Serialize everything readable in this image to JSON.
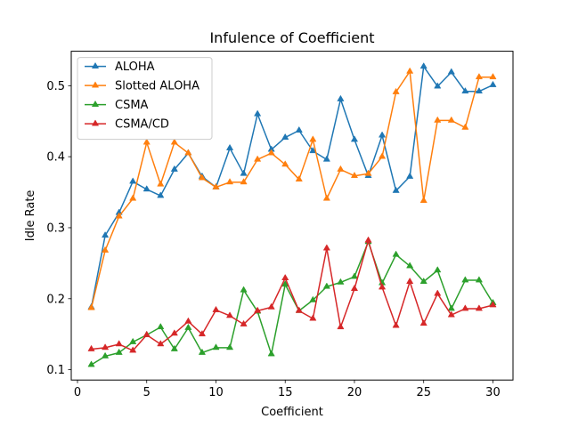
{
  "chart_data": {
    "type": "line",
    "title": "Infulence of Coefficient",
    "xlabel": "Coefficient",
    "ylabel": "Idle Rate",
    "xlim": [
      -0.45,
      31.45
    ],
    "ylim": [
      0.0855,
      0.5485
    ],
    "xticks": [
      0,
      5,
      10,
      15,
      20,
      25,
      30
    ],
    "yticks": [
      0.1,
      0.2,
      0.3,
      0.4,
      0.5
    ],
    "xtick_labels": [
      "0",
      "5",
      "10",
      "15",
      "20",
      "25",
      "30"
    ],
    "ytick_labels": [
      "0.1",
      "0.2",
      "0.3",
      "0.4",
      "0.5"
    ],
    "grid": false,
    "legend_position": "top-left",
    "marker": "triangle-up",
    "x": [
      1,
      2,
      3,
      4,
      5,
      6,
      7,
      8,
      9,
      10,
      11,
      12,
      13,
      14,
      15,
      16,
      17,
      18,
      19,
      20,
      21,
      22,
      23,
      24,
      25,
      26,
      27,
      28,
      29,
      30
    ],
    "series": [
      {
        "name": "ALOHA",
        "color": "#1f77b4",
        "values": [
          0.188,
          0.289,
          0.321,
          0.365,
          0.354,
          0.345,
          0.382,
          0.405,
          0.372,
          0.357,
          0.412,
          0.376,
          0.46,
          0.41,
          0.427,
          0.437,
          0.408,
          0.396,
          0.481,
          0.424,
          0.373,
          0.43,
          0.352,
          0.372,
          0.527,
          0.499,
          0.519,
          0.492,
          0.492,
          0.501
        ]
      },
      {
        "name": "Slotted ALOHA",
        "color": "#ff7f0e",
        "values": [
          0.187,
          0.268,
          0.316,
          0.341,
          0.42,
          0.361,
          0.42,
          0.405,
          0.37,
          0.357,
          0.364,
          0.364,
          0.396,
          0.405,
          0.389,
          0.368,
          0.424,
          0.341,
          0.382,
          0.373,
          0.376,
          0.4,
          0.491,
          0.52,
          0.338,
          0.451,
          0.451,
          0.441,
          0.512,
          0.512
        ]
      },
      {
        "name": "CSMA",
        "color": "#2ca02c",
        "values": [
          0.107,
          0.119,
          0.124,
          0.139,
          0.149,
          0.16,
          0.129,
          0.159,
          0.124,
          0.131,
          0.131,
          0.212,
          0.182,
          0.122,
          0.22,
          0.183,
          0.198,
          0.217,
          0.223,
          0.231,
          0.28,
          0.222,
          0.262,
          0.246,
          0.224,
          0.24,
          0.186,
          0.226,
          0.226,
          0.194
        ]
      },
      {
        "name": "CSMA/CD",
        "color": "#d62728",
        "values": [
          0.129,
          0.131,
          0.136,
          0.127,
          0.149,
          0.136,
          0.151,
          0.168,
          0.15,
          0.184,
          0.176,
          0.164,
          0.183,
          0.188,
          0.229,
          0.183,
          0.172,
          0.271,
          0.16,
          0.214,
          0.282,
          0.216,
          0.162,
          0.224,
          0.165,
          0.207,
          0.177,
          0.186,
          0.186,
          0.191
        ]
      }
    ]
  }
}
